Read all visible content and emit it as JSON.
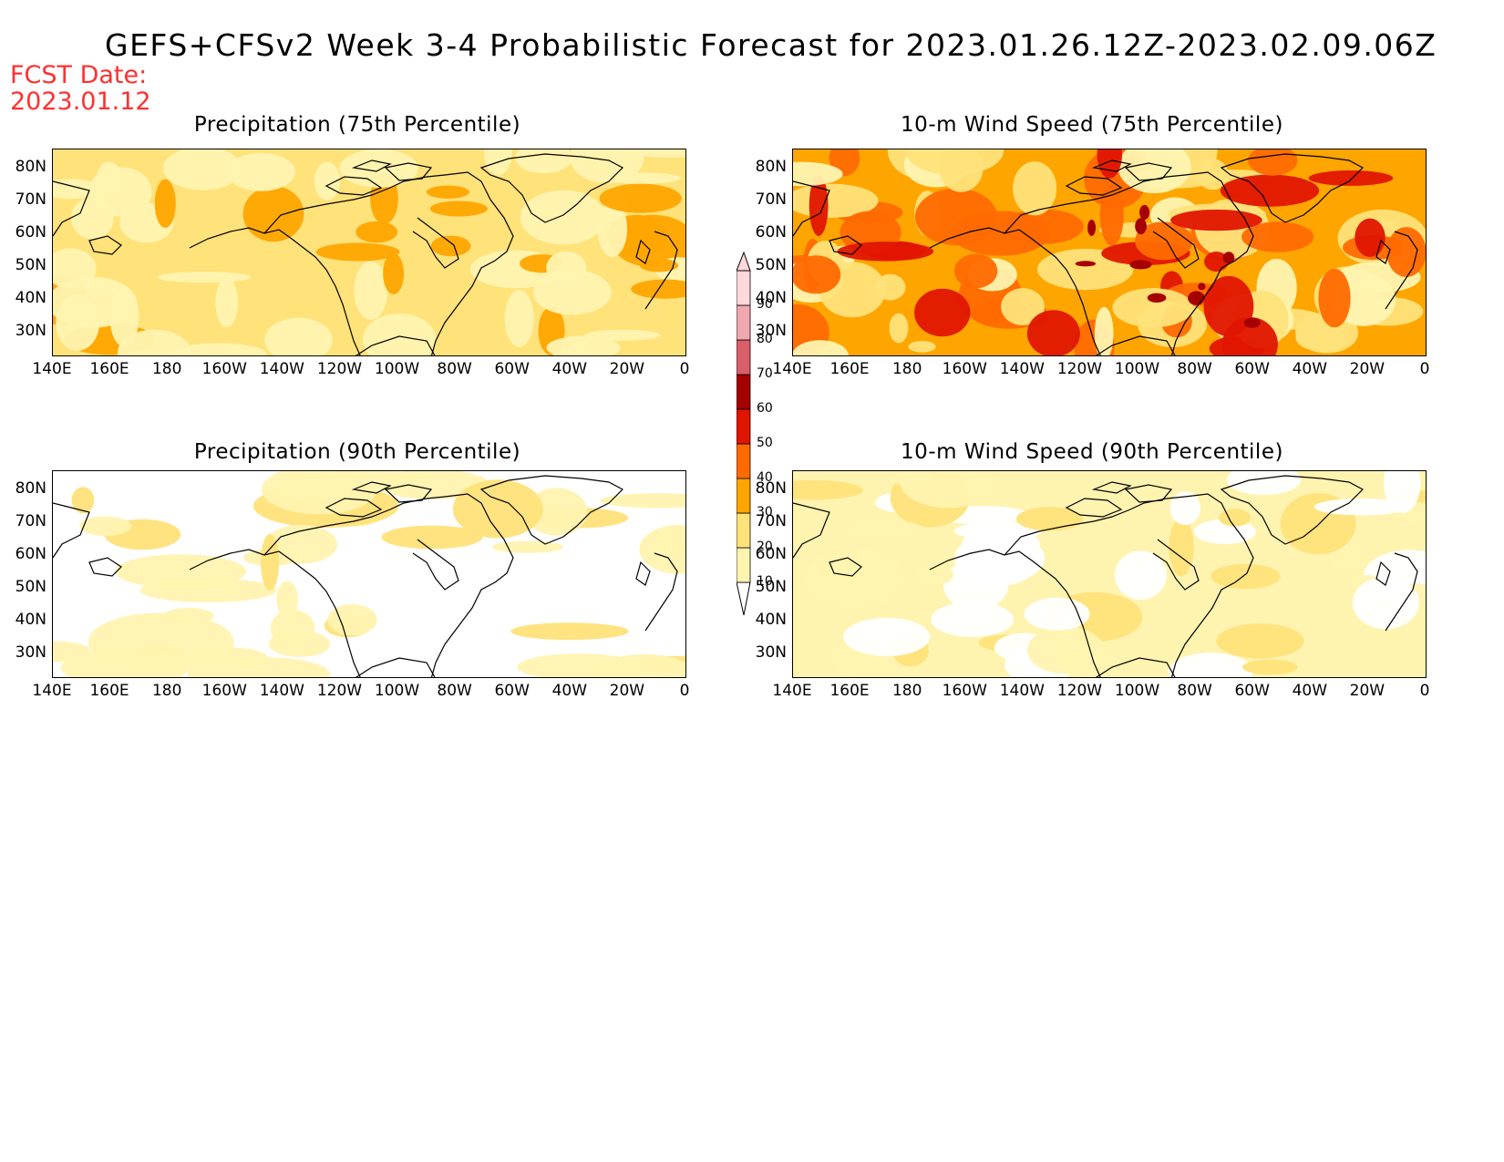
{
  "title": "GEFS+CFSv2 Week 3-4 Probabilistic Forecast for 2023.01.26.12Z-2023.02.09.06Z",
  "fcst_date": "FCST Date:\n2023.01.12",
  "colors": {
    "white": "#ffffff",
    "c10": "#fff3b0",
    "c20": "#ffe27a",
    "c30": "#ffa500",
    "c40": "#ff6a00",
    "c50": "#e01500",
    "c60": "#a50000",
    "c70": "#d9606a",
    "c80": "#f0a8b0",
    "c90": "#ffd8dc",
    "coast": "#000000"
  },
  "colorbar": {
    "levels": [
      "10",
      "20",
      "30",
      "40",
      "50",
      "60",
      "70",
      "80",
      "90"
    ]
  },
  "axes": {
    "lat_labels": [
      "80N",
      "70N",
      "60N",
      "50N",
      "40N",
      "30N"
    ],
    "lon_labels": [
      "140E",
      "160E",
      "180",
      "160W",
      "140W",
      "120W",
      "100W",
      "80W",
      "60W",
      "40W",
      "20W",
      "0"
    ]
  },
  "panels": [
    {
      "id": "precip75",
      "title": "Precipitation (75th Percentile)",
      "base": "c20",
      "intensity": 1
    },
    {
      "id": "wind75",
      "title": "10-m Wind Speed (75th Percentile)",
      "base": "c30",
      "intensity": 3
    },
    {
      "id": "precip90",
      "title": "Precipitation (90th Percentile)",
      "base": "white",
      "intensity": 0
    },
    {
      "id": "wind90",
      "title": "10-m Wind Speed (90th Percentile)",
      "base": "c10",
      "intensity": 0.5
    }
  ]
}
